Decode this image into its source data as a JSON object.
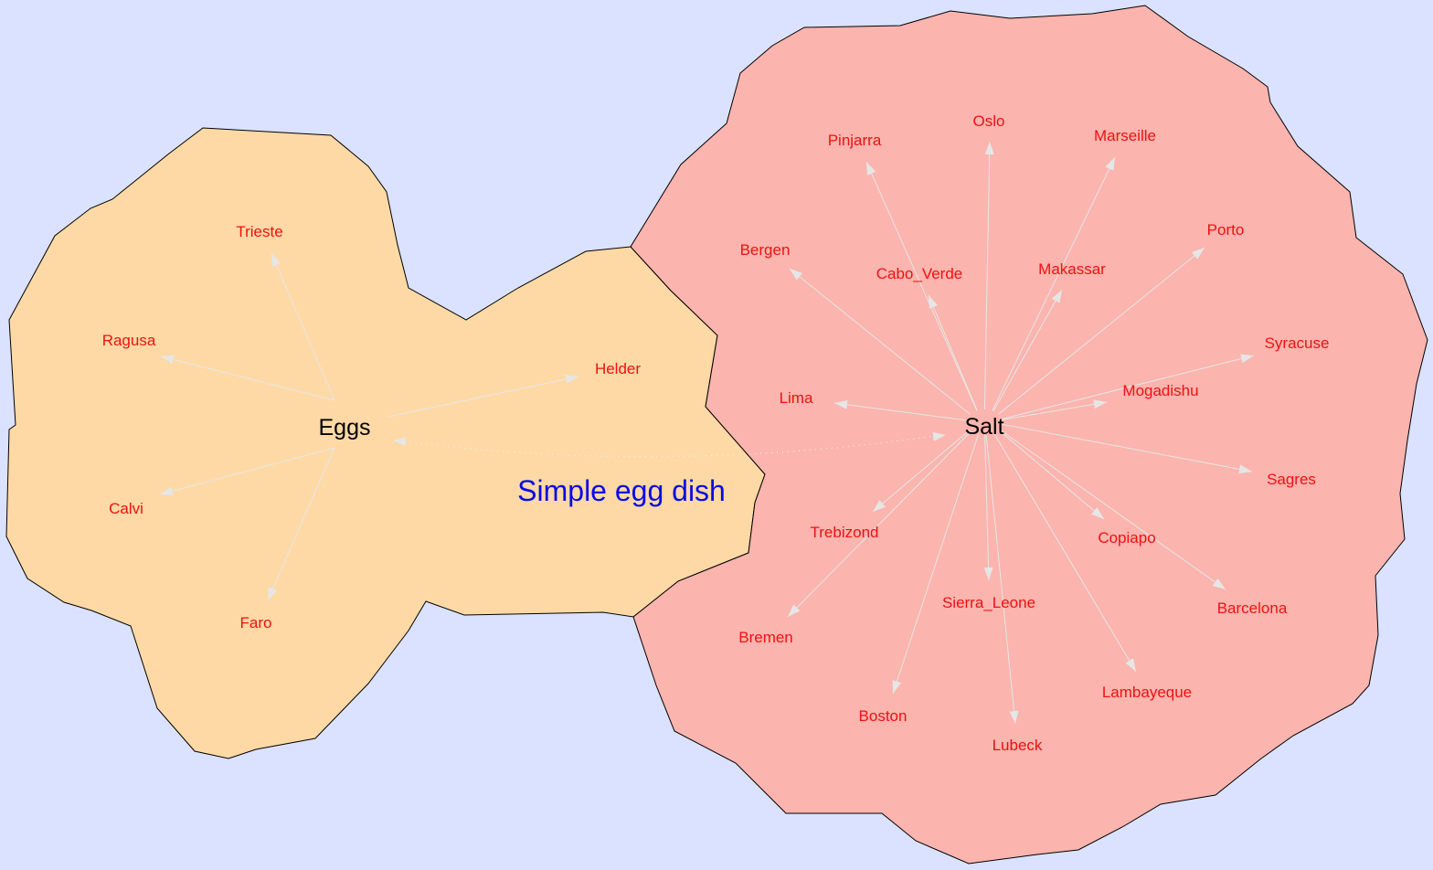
{
  "caption": "Simple egg dish",
  "colors": {
    "background": "#dbe2ff",
    "eggs_region": "#fed9a5",
    "salt_region": "#fbb4ae",
    "edge": "#e6e6e6",
    "leaf_label": "#ee1111",
    "hub_label": "#000000",
    "caption": "#0a0ae6"
  },
  "clusters": [
    {
      "id": "eggs",
      "hub": "Eggs",
      "leaves": [
        "Trieste",
        "Ragusa",
        "Calvi",
        "Faro",
        "Helder"
      ]
    },
    {
      "id": "salt",
      "hub": "Salt",
      "leaves": [
        "Pinjarra",
        "Oslo",
        "Marseille",
        "Bergen",
        "Cabo_Verde",
        "Makassar",
        "Porto",
        "Lima",
        "Syracuse",
        "Mogadishu",
        "Sagres",
        "Trebizond",
        "Copiapo",
        "Bremen",
        "Sierra_Leone",
        "Barcelona",
        "Lambayeque",
        "Boston",
        "Lubeck"
      ]
    }
  ],
  "cross_links": [
    {
      "from": "Salt",
      "to": "Eggs",
      "style": "dotted"
    }
  ]
}
